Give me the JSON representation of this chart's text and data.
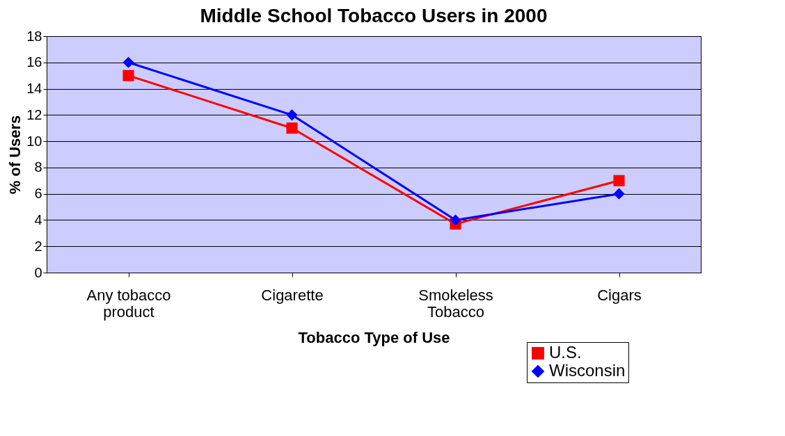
{
  "chart_data": {
    "type": "line",
    "title": "Middle School Tobacco Users in 2000",
    "xlabel": "Tobacco Type of Use",
    "ylabel": "% of Users",
    "categories": [
      "Any tobacco product",
      "Cigarette",
      "Smokeless Tobacco",
      "Cigars"
    ],
    "series": [
      {
        "name": "U.S.",
        "color": "#ff0000",
        "marker": "square",
        "values": [
          15,
          11,
          3.7,
          7
        ]
      },
      {
        "name": "Wisconsin",
        "color": "#0000ff",
        "marker": "diamond",
        "values": [
          16,
          12,
          4,
          6
        ]
      }
    ],
    "ylim": [
      0,
      18
    ],
    "yticks": [
      0,
      2,
      4,
      6,
      8,
      10,
      12,
      14,
      16,
      18
    ],
    "grid": "y",
    "legend": "bottom right",
    "line_style": "solid"
  }
}
